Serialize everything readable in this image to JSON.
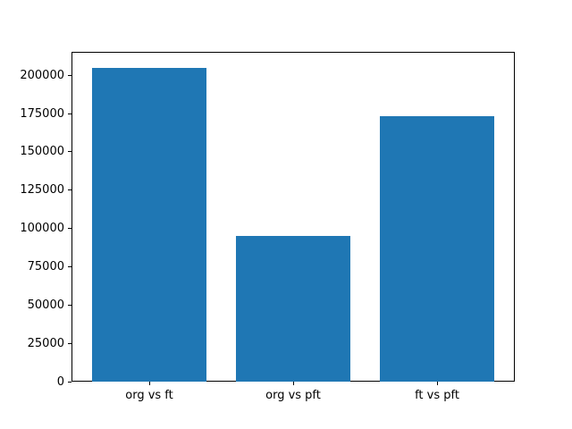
{
  "chart_data": {
    "type": "bar",
    "title": "",
    "xlabel": "",
    "ylabel": "",
    "categories": [
      "org vs ft",
      "org vs pft",
      "ft vs pft"
    ],
    "values": [
      205000,
      95000,
      173000
    ],
    "ylim": [
      0,
      215250
    ],
    "yticks": [
      0,
      25000,
      50000,
      75000,
      100000,
      125000,
      150000,
      175000,
      200000
    ],
    "bar_width_fraction": 0.8,
    "bar_color": "#1f77b4",
    "axes_color": "#000000",
    "background_color": "#ffffff",
    "grid": false,
    "legend": null
  }
}
